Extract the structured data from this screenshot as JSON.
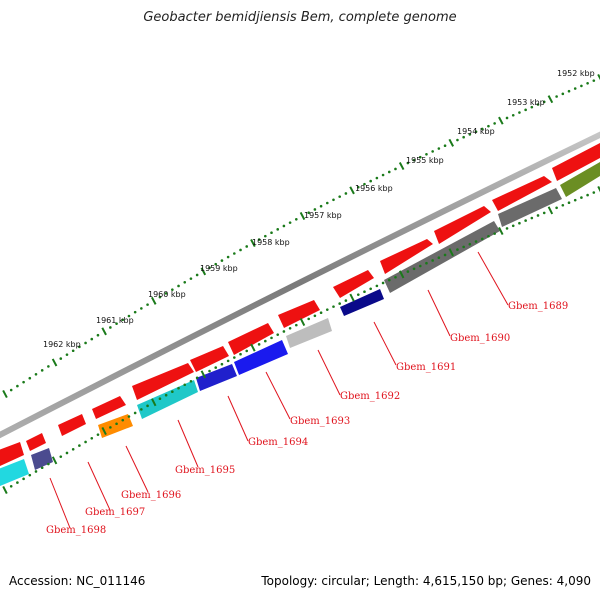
{
  "title": "Geobacter bemidjiensis Bem, complete genome",
  "footer": {
    "accession": "Accession: NC_011146",
    "summary": "Topology: circular; Length: 4,615,150 bp; Genes: 4,090"
  },
  "scale_labels": [
    "1952 kbp",
    "1953 kbp",
    "1954 kbp",
    "1955 kbp",
    "1956 kbp",
    "1957 kbp",
    "1958 kbp",
    "1959 kbp",
    "1960 kbp",
    "1961 kbp",
    "1962 kbp"
  ],
  "gene_labels": [
    "Gbem_1689",
    "Gbem_1690",
    "Gbem_1691",
    "Gbem_1692",
    "Gbem_1693",
    "Gbem_1694",
    "Gbem_1695",
    "Gbem_1696",
    "Gbem_1697",
    "Gbem_1698"
  ],
  "colors": {
    "backbone": "#8a8a8a",
    "forward_genes": "#ee1111",
    "tick": "#1a7a1a",
    "label": "#e0141e",
    "reverse_genes": [
      "#6b6b6b",
      "#6b6b6b",
      "#0a0a8a",
      "#bdbdbd",
      "#1a1aee",
      "#1fc8c8",
      "#ff8c00",
      "#4b4b8f",
      "#22d8e0",
      "#6b8e23"
    ]
  }
}
